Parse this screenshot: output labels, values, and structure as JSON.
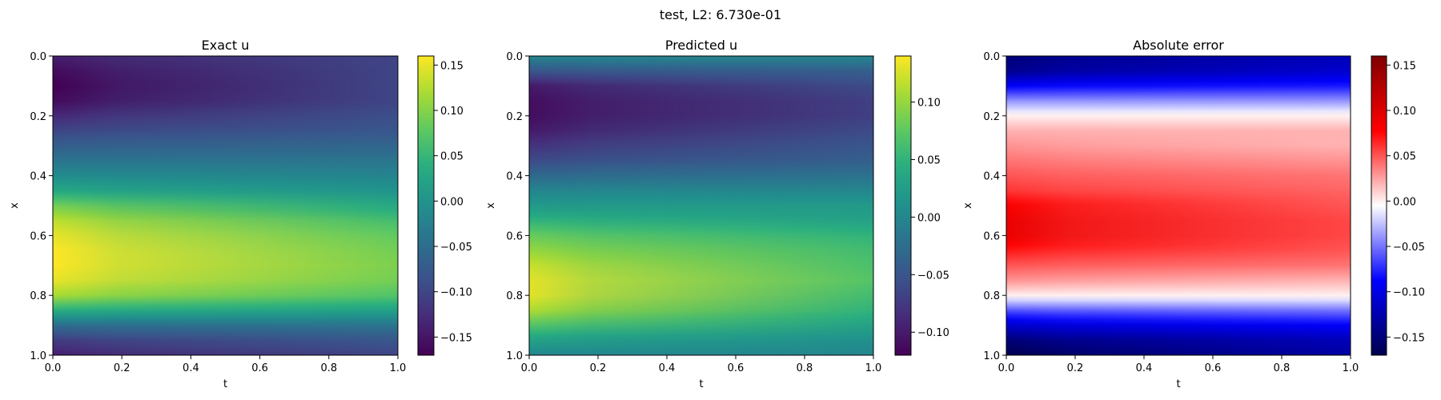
{
  "suptitle": "test, L2: 6.730e-01",
  "chart_data": [
    {
      "type": "heatmap",
      "title": "Exact u",
      "xlabel": "t",
      "ylabel": "x",
      "x_range": [
        0.0,
        1.0
      ],
      "y_range": [
        0.0,
        1.0
      ],
      "y_inverted": true,
      "x_ticks": [
        "0.0",
        "0.2",
        "0.4",
        "0.6",
        "0.8",
        "1.0"
      ],
      "y_ticks": [
        "0.0",
        "0.2",
        "0.4",
        "0.6",
        "0.8",
        "1.0"
      ],
      "colormap": "viridis",
      "color_range": [
        -0.17,
        0.16
      ],
      "colorbar_ticks": [
        0.15,
        0.1,
        0.05,
        0.0,
        -0.05,
        -0.1,
        -0.15
      ],
      "colorbar_tick_labels": [
        "0.15",
        "0.10",
        "0.05",
        "0.00",
        "−0.05",
        "−0.10",
        "−0.15"
      ],
      "profile": {
        "x": [
          0.0,
          0.05,
          0.1,
          0.15,
          0.2,
          0.25,
          0.3,
          0.35,
          0.4,
          0.45,
          0.5,
          0.55,
          0.6,
          0.65,
          0.7,
          0.75,
          0.8,
          0.85,
          0.9,
          0.95,
          1.0
        ],
        "u_at_t0": [
          -0.14,
          -0.16,
          -0.17,
          -0.16,
          -0.13,
          -0.1,
          -0.07,
          -0.04,
          -0.01,
          0.03,
          0.09,
          0.13,
          0.15,
          0.16,
          0.16,
          0.15,
          0.12,
          0.04,
          -0.05,
          -0.11,
          -0.14
        ],
        "u_at_t1": [
          -0.1,
          -0.1,
          -0.1,
          -0.1,
          -0.09,
          -0.08,
          -0.06,
          -0.04,
          -0.02,
          0.0,
          0.03,
          0.06,
          0.08,
          0.09,
          0.095,
          0.09,
          0.07,
          0.02,
          -0.04,
          -0.08,
          -0.1
        ]
      }
    },
    {
      "type": "heatmap",
      "title": "Predicted u",
      "xlabel": "t",
      "ylabel": "x",
      "x_range": [
        0.0,
        1.0
      ],
      "y_range": [
        0.0,
        1.0
      ],
      "y_inverted": true,
      "x_ticks": [
        "0.0",
        "0.2",
        "0.4",
        "0.6",
        "0.8",
        "1.0"
      ],
      "y_ticks": [
        "0.0",
        "0.2",
        "0.4",
        "0.6",
        "0.8",
        "1.0"
      ],
      "colormap": "viridis",
      "color_range": [
        -0.12,
        0.14
      ],
      "colorbar_ticks": [
        0.1,
        0.05,
        0.0,
        -0.05,
        -0.1
      ],
      "colorbar_tick_labels": [
        "0.10",
        "0.05",
        "0.00",
        "−0.05",
        "−0.10"
      ],
      "profile": {
        "x": [
          0.0,
          0.05,
          0.1,
          0.15,
          0.2,
          0.25,
          0.3,
          0.35,
          0.4,
          0.45,
          0.5,
          0.55,
          0.6,
          0.65,
          0.7,
          0.75,
          0.8,
          0.85,
          0.9,
          0.95,
          1.0
        ],
        "u_at_t0": [
          0.0,
          -0.05,
          -0.1,
          -0.11,
          -0.11,
          -0.1,
          -0.08,
          -0.06,
          -0.03,
          0.0,
          0.02,
          0.05,
          0.08,
          0.1,
          0.12,
          0.13,
          0.13,
          0.11,
          0.07,
          0.03,
          0.0
        ],
        "u_at_t1": [
          0.0,
          -0.04,
          -0.06,
          -0.07,
          -0.07,
          -0.06,
          -0.05,
          -0.04,
          -0.02,
          0.0,
          0.02,
          0.03,
          0.05,
          0.06,
          0.065,
          0.07,
          0.06,
          0.05,
          0.03,
          0.01,
          0.0
        ]
      }
    },
    {
      "type": "heatmap",
      "title": "Absolute error",
      "xlabel": "t",
      "ylabel": "x",
      "x_range": [
        0.0,
        1.0
      ],
      "y_range": [
        0.0,
        1.0
      ],
      "y_inverted": true,
      "x_ticks": [
        "0.0",
        "0.2",
        "0.4",
        "0.6",
        "0.8",
        "1.0"
      ],
      "y_ticks": [
        "0.0",
        "0.2",
        "0.4",
        "0.6",
        "0.8",
        "1.0"
      ],
      "colormap": "seismic",
      "color_range": [
        -0.17,
        0.16
      ],
      "colorbar_ticks": [
        0.15,
        0.1,
        0.05,
        0.0,
        -0.05,
        -0.1,
        -0.15
      ],
      "colorbar_tick_labels": [
        "0.15",
        "0.10",
        "0.05",
        "0.00",
        "−0.05",
        "−0.10",
        "−0.15"
      ],
      "profile": {
        "x": [
          0.0,
          0.05,
          0.1,
          0.15,
          0.2,
          0.25,
          0.3,
          0.35,
          0.4,
          0.45,
          0.5,
          0.55,
          0.6,
          0.65,
          0.7,
          0.75,
          0.8,
          0.85,
          0.9,
          0.95,
          1.0
        ],
        "u_at_t0": [
          -0.15,
          -0.14,
          -0.09,
          -0.04,
          0.0,
          0.02,
          0.03,
          0.04,
          0.05,
          0.06,
          0.08,
          0.09,
          0.09,
          0.07,
          0.05,
          0.03,
          0.0,
          -0.06,
          -0.11,
          -0.15,
          -0.17
        ],
        "u_at_t1": [
          -0.12,
          -0.11,
          -0.08,
          -0.04,
          0.0,
          0.02,
          0.02,
          0.03,
          0.04,
          0.045,
          0.05,
          0.055,
          0.055,
          0.05,
          0.04,
          0.02,
          0.0,
          -0.05,
          -0.09,
          -0.12,
          -0.13
        ]
      }
    }
  ]
}
